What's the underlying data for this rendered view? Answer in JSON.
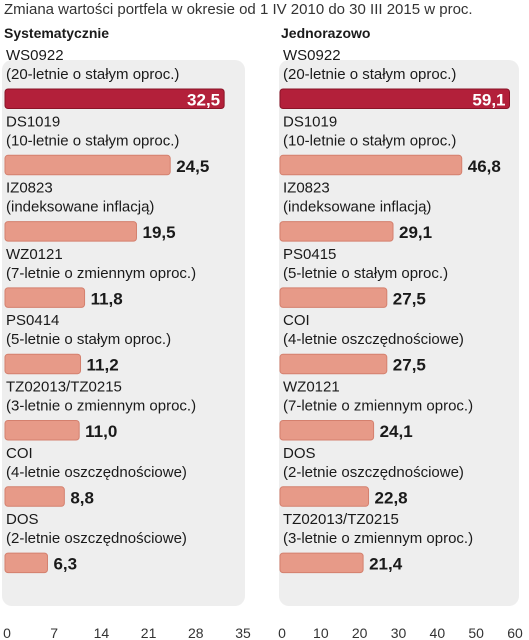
{
  "chart_data": {
    "type": "bar",
    "orientation": "horizontal",
    "title": "Zmiana wartości portfela w okresie od 1 IV 2010 do 30 III 2015 w proc.",
    "colors": {
      "highlight": "#b3203a",
      "bar": "#e79a88",
      "panel_bg": "#eeeeee"
    },
    "panels": [
      {
        "title": "Systematycznie",
        "xlim": [
          0,
          35
        ],
        "ticks": [
          "0",
          "7",
          "14",
          "21",
          "28",
          "35"
        ],
        "bars": [
          {
            "code": "WS0922",
            "desc": "(20-letnie o stałym oproc.)",
            "value": 32.5,
            "label": "32,5",
            "highlight": true
          },
          {
            "code": "DS1019",
            "desc": "(10-letnie o stałym oproc.)",
            "value": 24.5,
            "label": "24,5"
          },
          {
            "code": "IZ0823",
            "desc": "(indeksowane inflacją)",
            "value": 19.5,
            "label": "19,5"
          },
          {
            "code": "WZ0121",
            "desc": "(7-letnie o zmiennym oproc.)",
            "value": 11.8,
            "label": "11,8"
          },
          {
            "code": "PS0414",
            "desc": "(5-letnie o stałym oproc.)",
            "value": 11.2,
            "label": "11,2"
          },
          {
            "code": "TZ02013/TZ0215",
            "desc": "(3-letnie o zmiennym oproc.)",
            "value": 11.0,
            "label": "11,0"
          },
          {
            "code": "COI",
            "desc": "(4-letnie oszczędnościowe)",
            "value": 8.8,
            "label": "8,8"
          },
          {
            "code": "DOS",
            "desc": "(2-letnie oszczędnościowe)",
            "value": 6.3,
            "label": "6,3"
          }
        ]
      },
      {
        "title": "Jednorazowo",
        "xlim": [
          0,
          60
        ],
        "ticks": [
          "0",
          "10",
          "20",
          "30",
          "40",
          "50",
          "60"
        ],
        "bars": [
          {
            "code": "WS0922",
            "desc": "(20-letnie o stałym oproc.)",
            "value": 59.1,
            "label": "59,1",
            "highlight": true
          },
          {
            "code": "DS1019",
            "desc": "(10-letnie o stałym oproc.)",
            "value": 46.8,
            "label": "46,8"
          },
          {
            "code": "IZ0823",
            "desc": "(indeksowane inflacją)",
            "value": 29.1,
            "label": "29,1"
          },
          {
            "code": "PS0415",
            "desc": "(5-letnie o stałym oproc.)",
            "value": 27.5,
            "label": "27,5"
          },
          {
            "code": "COI",
            "desc": "(4-letnie oszczędnościowe)",
            "value": 27.5,
            "label": "27,5"
          },
          {
            "code": "WZ0121",
            "desc": "(7-letnie o zmiennym oproc.)",
            "value": 24.1,
            "label": "24,1"
          },
          {
            "code": "DOS",
            "desc": "(2-letnie oszczędnościowe)",
            "value": 22.8,
            "label": "22,8"
          },
          {
            "code": "TZ02013/TZ0215",
            "desc": "(3-letnie o zmiennym oproc.)",
            "value": 21.4,
            "label": "21,4"
          }
        ]
      }
    ]
  }
}
